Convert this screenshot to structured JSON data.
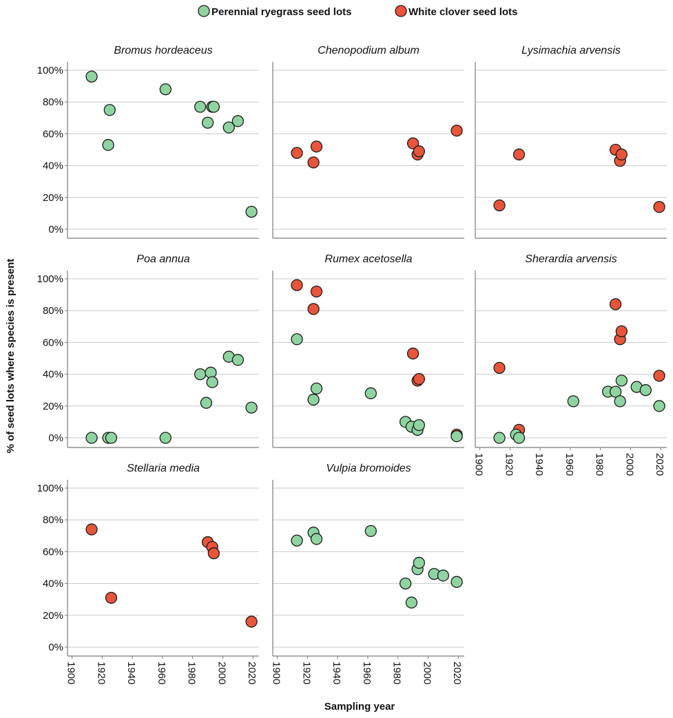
{
  "chart_data": {
    "type": "scatter",
    "xlabel": "Sampling year",
    "ylabel": "% of seed lots where species is present",
    "xlim": [
      1897,
      2024
    ],
    "ylim": [
      -5,
      105
    ],
    "x_ticks": [
      1900,
      1920,
      1940,
      1960,
      1980,
      2000,
      2020
    ],
    "y_ticks": [
      0,
      20,
      40,
      60,
      80,
      100
    ],
    "y_tick_labels": [
      "0%",
      "20%",
      "40%",
      "60%",
      "80%",
      "100%"
    ],
    "grid": "horizontal",
    "legend_position": "top",
    "legend": [
      {
        "key": "ryegrass",
        "label": "Perennial ryegrass seed lots",
        "color": "#8fd4a0"
      },
      {
        "key": "clover",
        "label": "White clover seed lots",
        "color": "#e8553a"
      }
    ],
    "panels": [
      {
        "title": "Bromus hordeaceus",
        "ryegrass": [
          [
            1913,
            96
          ],
          [
            1924,
            53
          ],
          [
            1925,
            75
          ],
          [
            1962,
            88
          ],
          [
            1985,
            77
          ],
          [
            1990,
            67
          ],
          [
            1993,
            77
          ],
          [
            1994,
            77
          ],
          [
            2004,
            64
          ],
          [
            2010,
            68
          ],
          [
            2019,
            11
          ]
        ],
        "clover": []
      },
      {
        "title": "Chenopodium album",
        "ryegrass": [],
        "clover": [
          [
            1913,
            48
          ],
          [
            1924,
            42
          ],
          [
            1926,
            52
          ],
          [
            1990,
            54
          ],
          [
            1993,
            47
          ],
          [
            1994,
            49
          ],
          [
            2019,
            62
          ]
        ]
      },
      {
        "title": "Lysimachia arvensis",
        "ryegrass": [],
        "clover": [
          [
            1913,
            15
          ],
          [
            1926,
            47
          ],
          [
            1990,
            50
          ],
          [
            1993,
            43
          ],
          [
            1994,
            47
          ],
          [
            2019,
            14
          ]
        ]
      },
      {
        "title": "Poa annua",
        "ryegrass": [
          [
            1913,
            0
          ],
          [
            1924,
            0
          ],
          [
            1926,
            0
          ],
          [
            1962,
            0
          ],
          [
            1985,
            40
          ],
          [
            1989,
            22
          ],
          [
            1992,
            41
          ],
          [
            1993,
            35
          ],
          [
            2004,
            51
          ],
          [
            2010,
            49
          ],
          [
            2019,
            19
          ]
        ],
        "clover": []
      },
      {
        "title": "Rumex acetosella",
        "ryegrass": [
          [
            1913,
            62
          ],
          [
            1924,
            24
          ],
          [
            1926,
            31
          ],
          [
            1962,
            28
          ],
          [
            1985,
            10
          ],
          [
            1989,
            7
          ],
          [
            1993,
            5
          ],
          [
            1994,
            8
          ],
          [
            2019,
            1
          ]
        ],
        "clover": [
          [
            1913,
            96
          ],
          [
            1924,
            81
          ],
          [
            1926,
            92
          ],
          [
            1990,
            53
          ],
          [
            1993,
            36
          ],
          [
            1994,
            37
          ],
          [
            2019,
            2
          ]
        ]
      },
      {
        "title": "Sherardia arvensis",
        "ryegrass": [
          [
            1913,
            0
          ],
          [
            1924,
            2
          ],
          [
            1926,
            0
          ],
          [
            1962,
            23
          ],
          [
            1985,
            29
          ],
          [
            1990,
            29
          ],
          [
            1993,
            23
          ],
          [
            1994,
            36
          ],
          [
            2004,
            32
          ],
          [
            2010,
            30
          ],
          [
            2019,
            20
          ]
        ],
        "clover": [
          [
            1913,
            44
          ],
          [
            1926,
            5
          ],
          [
            1990,
            84
          ],
          [
            1993,
            62
          ],
          [
            1994,
            67
          ],
          [
            2019,
            39
          ]
        ]
      },
      {
        "title": "Stellaria media",
        "ryegrass": [],
        "clover": [
          [
            1913,
            74
          ],
          [
            1926,
            31
          ],
          [
            1990,
            66
          ],
          [
            1993,
            63
          ],
          [
            1994,
            59
          ],
          [
            2019,
            16
          ]
        ]
      },
      {
        "title": "Vulpia bromoides",
        "ryegrass": [
          [
            1913,
            67
          ],
          [
            1924,
            72
          ],
          [
            1926,
            68
          ],
          [
            1962,
            73
          ],
          [
            1985,
            40
          ],
          [
            1989,
            28
          ],
          [
            1993,
            49
          ],
          [
            1994,
            53
          ],
          [
            2004,
            46
          ],
          [
            2010,
            45
          ],
          [
            2019,
            41
          ]
        ],
        "clover": []
      }
    ]
  }
}
